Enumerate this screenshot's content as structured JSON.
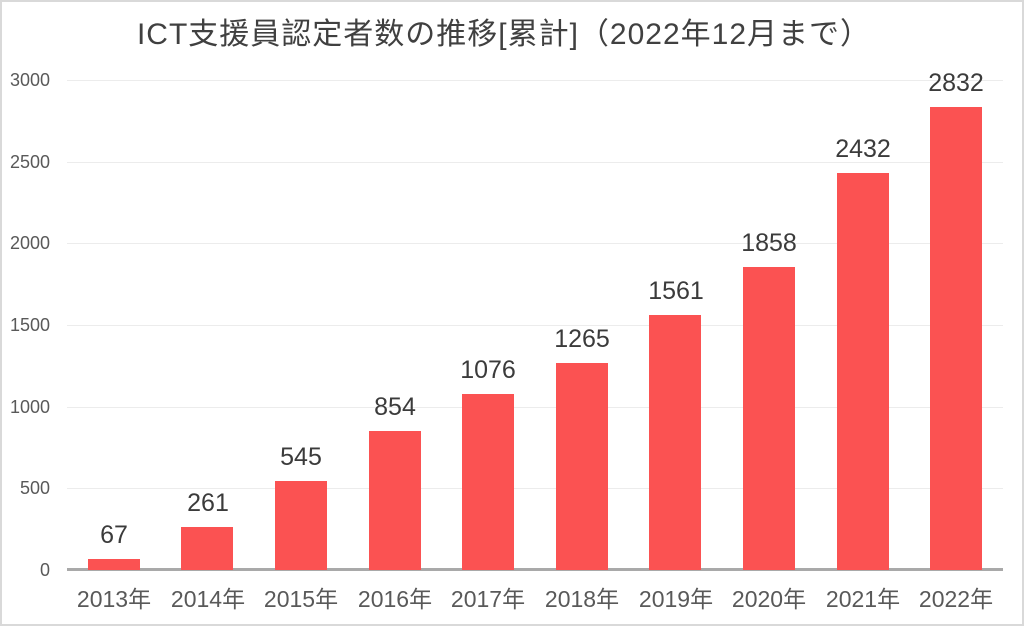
{
  "frame": {
    "background": "#ffffff",
    "border_color": "#d9d9d9"
  },
  "chart_data": {
    "type": "bar",
    "title": "ICT支援員認定者数の推移[累計]（2022年12月まで）",
    "categories": [
      "2013年",
      "2014年",
      "2015年",
      "2016年",
      "2017年",
      "2018年",
      "2019年",
      "2020年",
      "2021年",
      "2022年"
    ],
    "values": [
      67,
      261,
      545,
      854,
      1076,
      1265,
      1561,
      1858,
      2432,
      2832
    ],
    "value_labels": [
      "67",
      "261",
      "545",
      "854",
      "1076",
      "1265",
      "1561",
      "1858",
      "2432",
      "2832"
    ],
    "y_ticks": [
      "0",
      "500",
      "1000",
      "1500",
      "2000",
      "2500",
      "3000"
    ],
    "y_tick_values": [
      0,
      500,
      1000,
      1500,
      2000,
      2500,
      3000
    ],
    "ylim": [
      0,
      3000
    ],
    "xlabel": "",
    "ylabel": "",
    "grid": "horizontal",
    "legend": "none",
    "colors": {
      "bar": "#fb5252",
      "title_text": "#404040",
      "value_label_text": "#3b3b3b",
      "tick_text": "#595959",
      "gridline": "#ececec",
      "axis_line": "#a9a9a9"
    }
  }
}
